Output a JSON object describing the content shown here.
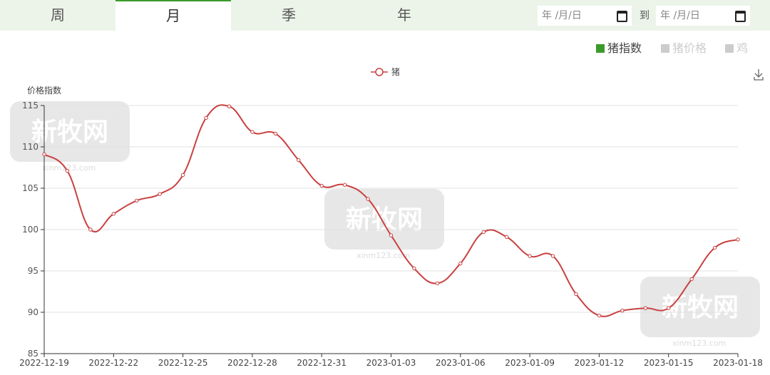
{
  "tabs": [
    {
      "label": "周",
      "active": false
    },
    {
      "label": "月",
      "active": true
    },
    {
      "label": "季",
      "active": false
    },
    {
      "label": "年",
      "active": false
    }
  ],
  "date_range": {
    "start_placeholder": "年 /月/日",
    "separator": "到",
    "end_placeholder": "年 /月/日"
  },
  "category_legend": [
    {
      "label": "猪指数",
      "color": "#3a9a2a",
      "active": true
    },
    {
      "label": "猪价格",
      "color": "#cccccc",
      "active": false
    },
    {
      "label": "鸡",
      "color": "#cccccc",
      "active": false
    }
  ],
  "toolbar": {
    "download_icon": "download-icon"
  },
  "watermark": {
    "logo": "新牧网",
    "url": "xinm123.com"
  },
  "chart_data": {
    "type": "line",
    "ylabel": "价格指数",
    "ylim": [
      85,
      115
    ],
    "yticks": [
      85,
      90,
      95,
      100,
      105,
      110,
      115
    ],
    "grid": true,
    "legend_position": "top-center",
    "x": [
      "2022-12-19",
      "2022-12-20",
      "2022-12-21",
      "2022-12-22",
      "2022-12-23",
      "2022-12-24",
      "2022-12-25",
      "2022-12-26",
      "2022-12-27",
      "2022-12-28",
      "2022-12-29",
      "2022-12-30",
      "2022-12-31",
      "2023-01-01",
      "2023-01-02",
      "2023-01-03",
      "2023-01-04",
      "2023-01-05",
      "2023-01-06",
      "2023-01-07",
      "2023-01-08",
      "2023-01-09",
      "2023-01-10",
      "2023-01-11",
      "2023-01-12",
      "2023-01-13",
      "2023-01-14",
      "2023-01-15",
      "2023-01-16",
      "2023-01-17",
      "2023-01-18"
    ],
    "xticks": [
      "2022-12-19",
      "2022-12-22",
      "2022-12-25",
      "2022-12-28",
      "2022-12-31",
      "2023-01-03",
      "2023-01-06",
      "2023-01-09",
      "2023-01-12",
      "2023-01-15",
      "2023-01-18"
    ],
    "series": [
      {
        "name": "猪",
        "color": "#c94040",
        "values": [
          109.1,
          107.1,
          100.0,
          101.9,
          103.5,
          104.3,
          106.6,
          113.5,
          114.9,
          111.8,
          111.6,
          108.4,
          105.3,
          105.4,
          103.7,
          99.3,
          95.3,
          93.5,
          95.9,
          99.7,
          99.1,
          96.8,
          96.8,
          92.2,
          89.6,
          90.2,
          90.5,
          90.5,
          94.0,
          97.8,
          98.8
        ]
      }
    ]
  }
}
